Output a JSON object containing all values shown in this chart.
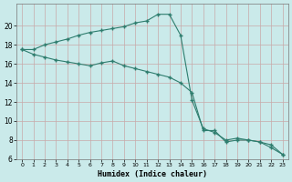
{
  "line1_x": [
    0,
    1,
    2,
    3,
    4,
    5,
    6,
    7,
    8,
    9,
    10,
    11,
    12,
    13,
    14,
    15,
    16,
    17,
    18,
    19,
    20,
    21,
    22,
    23
  ],
  "line1_y": [
    17.5,
    17.5,
    18.0,
    18.3,
    18.6,
    19.0,
    19.3,
    19.5,
    19.7,
    19.9,
    20.3,
    20.5,
    21.2,
    21.2,
    19.0,
    12.2,
    9.2,
    8.8,
    8.0,
    8.2,
    8.0,
    7.8,
    7.5,
    6.5
  ],
  "line2_x": [
    0,
    1,
    2,
    3,
    4,
    5,
    6,
    7,
    8,
    9,
    10,
    11,
    12,
    13,
    14,
    15,
    16,
    17,
    18,
    19,
    20,
    21,
    22,
    23
  ],
  "line2_y": [
    17.5,
    17.0,
    16.7,
    16.4,
    16.2,
    16.0,
    15.8,
    16.1,
    16.3,
    15.8,
    15.5,
    15.2,
    14.9,
    14.6,
    14.0,
    13.0,
    9.0,
    9.0,
    7.8,
    8.0,
    8.0,
    7.8,
    7.2,
    6.5
  ],
  "line_color": "#2e7d6e",
  "bg_color": "#caeaea",
  "grid_color_major": "#c8a8a8",
  "xlabel": "Humidex (Indice chaleur)",
  "ylim": [
    6,
    22
  ],
  "xlim": [
    -0.5,
    23.5
  ],
  "yticks": [
    6,
    8,
    10,
    12,
    14,
    16,
    18,
    20
  ],
  "xticks": [
    0,
    1,
    2,
    3,
    4,
    5,
    6,
    7,
    8,
    9,
    10,
    11,
    12,
    13,
    14,
    15,
    16,
    17,
    18,
    19,
    20,
    21,
    22,
    23
  ]
}
